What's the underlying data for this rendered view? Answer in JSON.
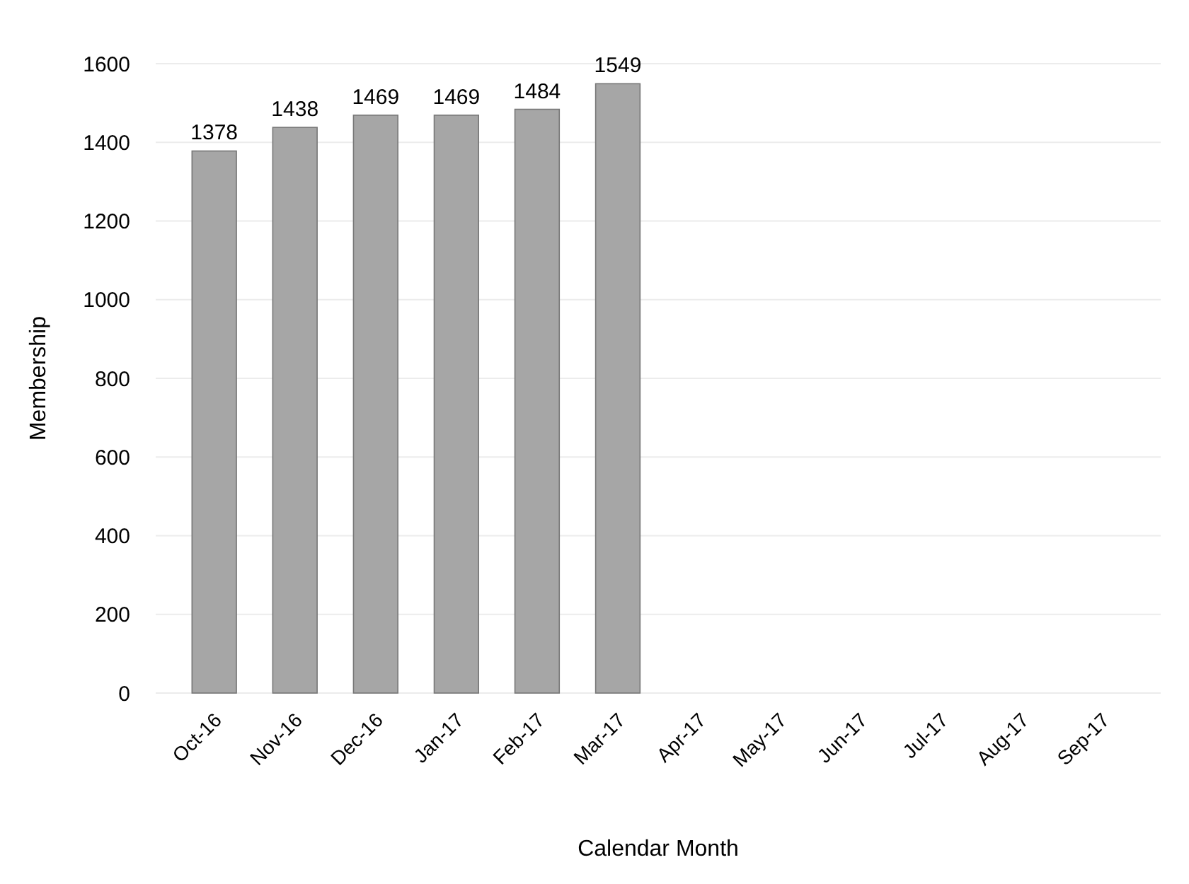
{
  "chart_data": {
    "type": "bar",
    "xlabel": "Calendar Month",
    "ylabel": "Membership",
    "categories": [
      "Oct-16",
      "Nov-16",
      "Dec-16",
      "Jan-17",
      "Feb-17",
      "Mar-17",
      "Apr-17",
      "May-17",
      "Jun-17",
      "Jul-17",
      "Aug-17",
      "Sep-17"
    ],
    "values": [
      1378,
      1438,
      1469,
      1469,
      1484,
      1549,
      null,
      null,
      null,
      null,
      null,
      null
    ],
    "color": "#a6a6a6",
    "ylim": [
      0,
      1600
    ],
    "yticks": [
      0,
      200,
      400,
      600,
      800,
      1000,
      1200,
      1400,
      1600
    ],
    "grid": "y",
    "data_labels": true
  }
}
